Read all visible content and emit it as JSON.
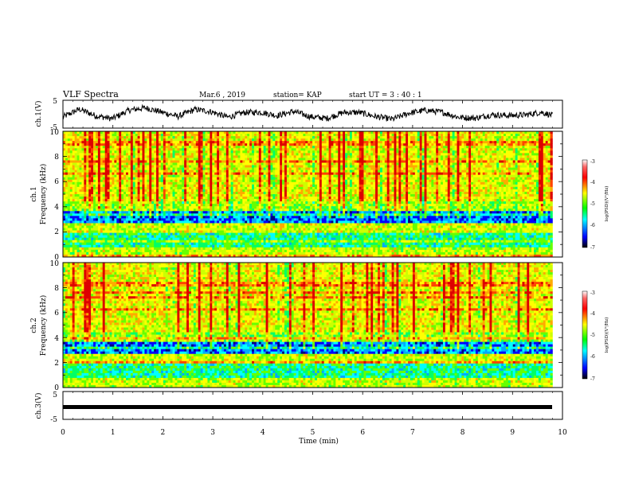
{
  "header": {
    "title": "VLF Spectra",
    "date": "Mar.6 , 2019",
    "station": "station= KAP",
    "start": "start  UT  =   3  : 40 : 1"
  },
  "chart_data": [
    {
      "type": "line",
      "panel": "ch1-waveform",
      "ylabel": "ch.1(V)",
      "ylim": [
        -5,
        5
      ],
      "yticks": [
        "5",
        "-5"
      ],
      "xlim": [
        0,
        10
      ],
      "color": "#000000",
      "x": [
        0.0,
        0.33,
        0.66,
        0.99,
        1.32,
        1.65,
        1.98,
        2.31,
        2.64,
        2.97,
        3.3,
        3.63,
        3.96,
        4.29,
        4.62,
        4.95,
        5.28,
        5.61,
        5.94,
        6.27,
        6.6,
        6.93,
        7.26,
        7.59,
        7.92,
        8.25,
        8.58,
        8.91,
        9.24,
        9.57,
        9.8
      ],
      "y": [
        -1.0,
        1.8,
        -0.6,
        -1.6,
        1.4,
        2.3,
        0.7,
        -0.8,
        1.7,
        0.9,
        -1.1,
        0.6,
        0.7,
        -0.5,
        1.0,
        -0.9,
        -1.5,
        0.6,
        0.6,
        -0.9,
        -1.8,
        0.4,
        1.4,
        0.7,
        -1.1,
        -1.4,
        -0.2,
        -0.5,
        -0.3,
        0.7,
        -0.4
      ]
    },
    {
      "type": "heatmap",
      "panel": "ch1-spectrogram",
      "ylabel": "ch.1\nFrequency  (kHz)",
      "ylim": [
        0,
        10
      ],
      "xlim": [
        0,
        10
      ],
      "yticks": [
        "0",
        "2",
        "4",
        "6",
        "8",
        "10"
      ],
      "colorbar": {
        "ticks": [
          "-3",
          "-4",
          "-5",
          "-6",
          "-7"
        ],
        "label": "log(PSD)(V²/Hz)",
        "range": [
          -7,
          -3
        ]
      }
    },
    {
      "type": "heatmap",
      "panel": "ch2-spectrogram",
      "ylabel": "ch.2\nFrequency  (kHz)",
      "ylim": [
        0,
        10
      ],
      "xlim": [
        0,
        10
      ],
      "yticks": [
        "0",
        "2",
        "4",
        "6",
        "8",
        "10"
      ],
      "colorbar": {
        "ticks": [
          "-3",
          "-4",
          "-5",
          "-6",
          "-7"
        ],
        "label": "log(PSD)(V²/Hz)",
        "range": [
          -7,
          -3
        ]
      }
    },
    {
      "type": "line",
      "panel": "ch3-waveform",
      "ylabel": "ch.3(V)",
      "ylim": [
        -5,
        5
      ],
      "yticks": [
        "5",
        "-5"
      ],
      "xlim": [
        0,
        10
      ],
      "x": [
        0,
        9.8
      ],
      "y": [
        0,
        0
      ],
      "xlabel": "Time  (min)",
      "xticks": [
        "0",
        "1",
        "2",
        "3",
        "4",
        "5",
        "6",
        "7",
        "8",
        "9",
        "10"
      ]
    }
  ],
  "colors": {
    "spectro_scale": [
      "#000080",
      "#0000ff",
      "#00aaff",
      "#00ffff",
      "#00ff66",
      "#66ff00",
      "#ccff00",
      "#ffff00",
      "#ffaa00",
      "#ff4400",
      "#dd0000"
    ],
    "line": "#000000"
  }
}
